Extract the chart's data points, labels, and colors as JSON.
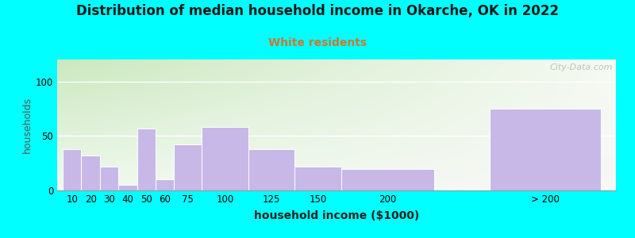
{
  "title": "Distribution of median household income in Okarche, OK in 2022",
  "subtitle": "White residents",
  "xlabel": "household income ($1000)",
  "ylabel": "households",
  "categories": [
    "10",
    "20",
    "30",
    "40",
    "50",
    "60",
    "75",
    "100",
    "125",
    "150",
    "200",
    "> 200"
  ],
  "values": [
    38,
    32,
    22,
    5,
    57,
    10,
    42,
    58,
    38,
    22,
    20,
    75
  ],
  "bar_color": "#c8b8e8",
  "outer_background": "#00ffff",
  "background_top_color": "#cce8c0",
  "background_bottom_color": "#f0faf0",
  "background_right_color": "#f5f5f0",
  "title_fontsize": 12,
  "subtitle_fontsize": 10,
  "subtitle_color": "#cc7733",
  "ylabel_fontsize": 9,
  "xlabel_fontsize": 10,
  "tick_fontsize": 8.5,
  "ylim": [
    0,
    120
  ],
  "yticks": [
    0,
    50,
    100
  ],
  "watermark": "City-Data.com",
  "left_edges": [
    0,
    10,
    20,
    30,
    40,
    50,
    60,
    75,
    100,
    125,
    150,
    230
  ],
  "bar_widths": [
    10,
    10,
    10,
    10,
    10,
    10,
    15,
    25,
    25,
    25,
    50,
    60
  ],
  "xlim_left": -3,
  "xlim_right": 298
}
